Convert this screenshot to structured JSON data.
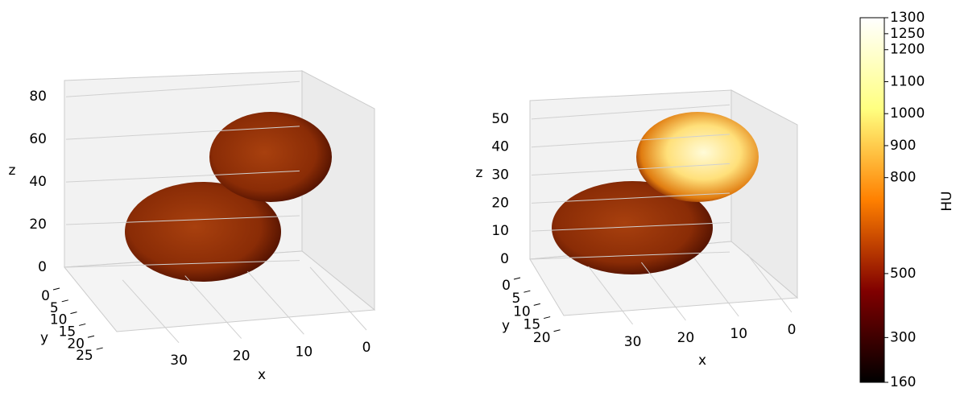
{
  "chart_data": [
    {
      "type": "voxel3d",
      "xlabel": "x",
      "ylabel": "y",
      "zlabel": "z",
      "xlim": [
        0,
        38
      ],
      "xticks": [
        30,
        20,
        10,
        0
      ],
      "ylim": [
        0,
        27
      ],
      "yticks": [
        0,
        5,
        10,
        15,
        20,
        25
      ],
      "zlim": [
        0,
        85
      ],
      "zticks": [
        0,
        20,
        40,
        60,
        80
      ],
      "grid": true
    },
    {
      "type": "voxel3d",
      "xlabel": "x",
      "ylabel": "y",
      "zlabel": "z",
      "xlim": [
        0,
        38
      ],
      "xticks": [
        30,
        20,
        10,
        0
      ],
      "ylim": [
        0,
        21
      ],
      "yticks": [
        0,
        5,
        10,
        15,
        20
      ],
      "zlim": [
        0,
        56
      ],
      "zticks": [
        0,
        10,
        20,
        30,
        40,
        50
      ],
      "grid": true
    },
    {
      "type": "colorbar",
      "label": "HU",
      "colormap": "afmhot",
      "ylim": [
        160,
        1300
      ],
      "yticks": [
        160,
        300,
        500,
        800,
        900,
        1000,
        1100,
        1200,
        1250,
        1300
      ]
    }
  ]
}
